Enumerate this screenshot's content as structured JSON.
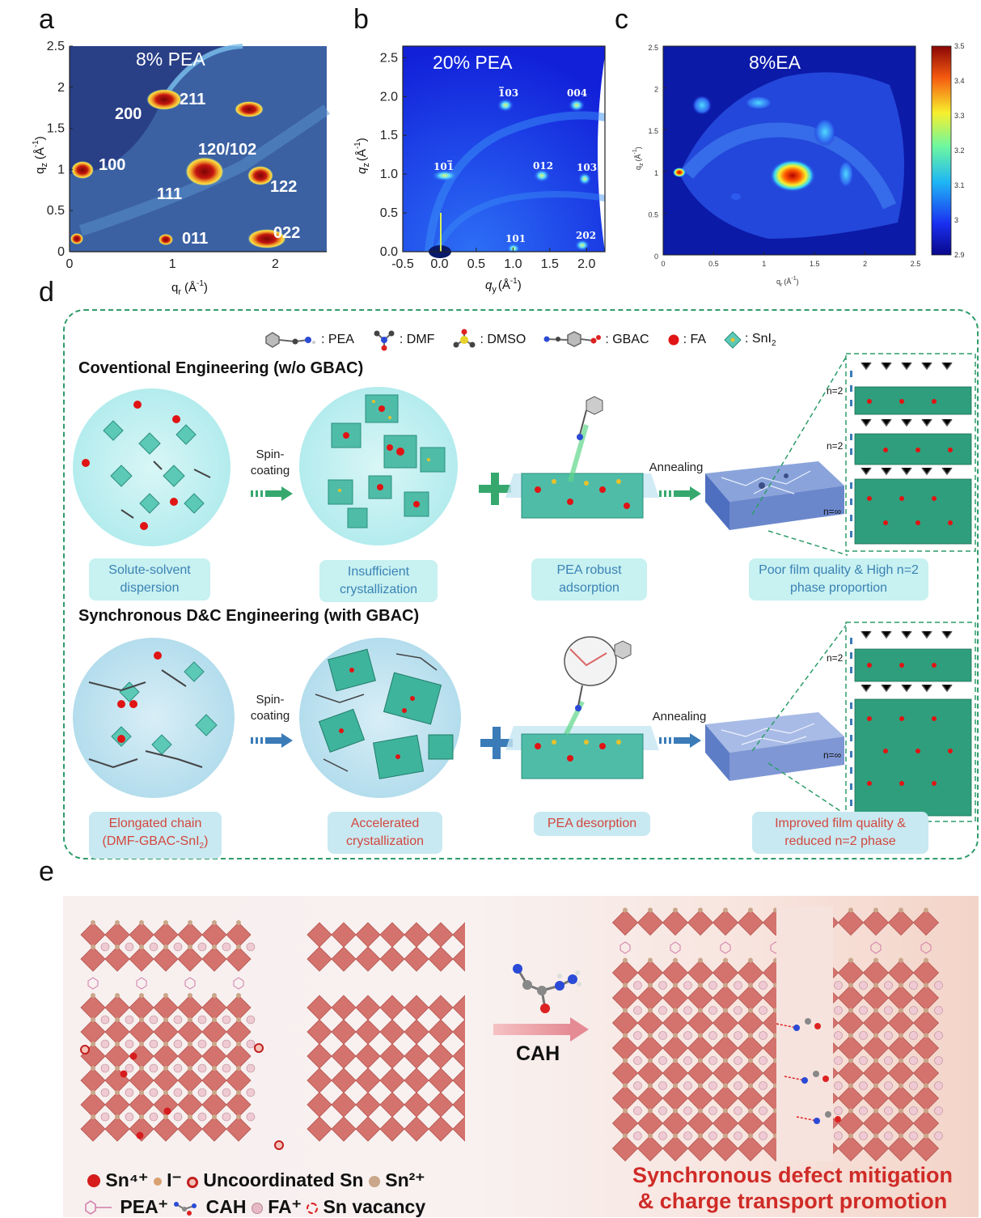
{
  "panels": {
    "a": {
      "label": "a",
      "sample": "8% PEA",
      "xlabel": "q",
      "xlabel_sub": "r",
      "xlabel_unit": "(Å",
      "xlabel_exp": "-1",
      "ylabel": "q",
      "ylabel_sub": "z",
      "ylabel_unit": "(Å",
      "xticks": [
        "0",
        "1",
        "2"
      ],
      "yticks": [
        "0",
        "0.5",
        "1",
        "1.5",
        "2",
        "2.5"
      ],
      "peaks": [
        "211",
        "200",
        "120/102",
        "100",
        "122",
        "111",
        "011",
        "022"
      ]
    },
    "b": {
      "label": "b",
      "sample": "20% PEA",
      "xlabel": "q",
      "xlabel_sub": "y",
      "xlabel_unit": "(Å",
      "ylabel": "q",
      "ylabel_sub": "z",
      "ylabel_unit": "(Å",
      "xticks": [
        "-0.5",
        "0.0",
        "0.5",
        "1.0",
        "1.5",
        "2.0"
      ],
      "yticks": [
        "0.0",
        "0.5",
        "1.0",
        "1.5",
        "2.0",
        "2.5"
      ],
      "peaks": [
        "103",
        "004",
        "101",
        "012",
        "103",
        "101",
        "202"
      ],
      "peak_bars": [
        "1",
        "1"
      ]
    },
    "c": {
      "label": "c",
      "sample": "8%EA",
      "xlabel": "q",
      "xlabel_sub": "r",
      "xlabel_unit": "(Å",
      "ylabel": "q",
      "ylabel_sub": "z",
      "ylabel_unit": "(Å",
      "xticks": [
        "0",
        "0.5",
        "1",
        "1.5",
        "2",
        "2.5"
      ],
      "yticks": [
        "0",
        "0.5",
        "1",
        "1.5",
        "2",
        "2.5"
      ],
      "colorbar_ticks": [
        "3.5",
        "3.4",
        "3.3",
        "3.2",
        "3.1",
        "3",
        "2.9"
      ]
    },
    "d": {
      "label": "d",
      "legend": [
        {
          "icon": "pea-molecule-icon",
          "text": ": PEA"
        },
        {
          "icon": "dmf-molecule-icon",
          "text": ": DMF"
        },
        {
          "icon": "dmso-molecule-icon",
          "text": ": DMSO"
        },
        {
          "icon": "gbac-molecule-icon",
          "text": ": GBAC"
        },
        {
          "icon": "fa-sphere-icon",
          "text": ": FA"
        },
        {
          "icon": "sni2-octahedron-icon",
          "text": ": SnI"
        }
      ],
      "sni2_sub": "2",
      "row1_title": "Coventional Engineering (w/o GBAC)",
      "row2_title": "Synchronous D&C Engineering (with GBAC)",
      "spin_coating": "Spin-coating",
      "spin_1": "Spin-",
      "spin_2": "coating",
      "annealing": "Annealing",
      "n2": "n=2",
      "ninf": "n=∞",
      "row1_captions": [
        "Solute-solvent dispersion",
        "Insufficient crystallization",
        "PEA robust adsorption",
        "Poor film quality & High n=2 phase proportion"
      ],
      "row2_captions": [
        "Elongated chain (DMF-GBAC-SnI",
        "Accelerated crystallization",
        "PEA desorption",
        "Improved film quality & reduced n=2 phase"
      ],
      "row2_caption1_sub": "2",
      "row2_caption1_end": ")"
    },
    "e": {
      "label": "e",
      "arrow_label": "CAH",
      "legend_line1": [
        "Sn⁴⁺",
        "I⁻",
        "Uncoordinated Sn",
        "Sn²⁺"
      ],
      "legend_line2": [
        "PEA⁺",
        "CAH",
        "FA⁺",
        "Sn vacancy"
      ],
      "result_line1": "Synchronous defect mitigation",
      "result_line2": "& charge transport promotion"
    }
  },
  "colors": {
    "hot_red": "#c4150f",
    "heat_blue": "#2a4f9a",
    "dashed_green": "#2e9c6a",
    "arrow_green": "#36a86e",
    "arrow_blue": "#3a7bb8",
    "result_red": "#cf2b27"
  }
}
